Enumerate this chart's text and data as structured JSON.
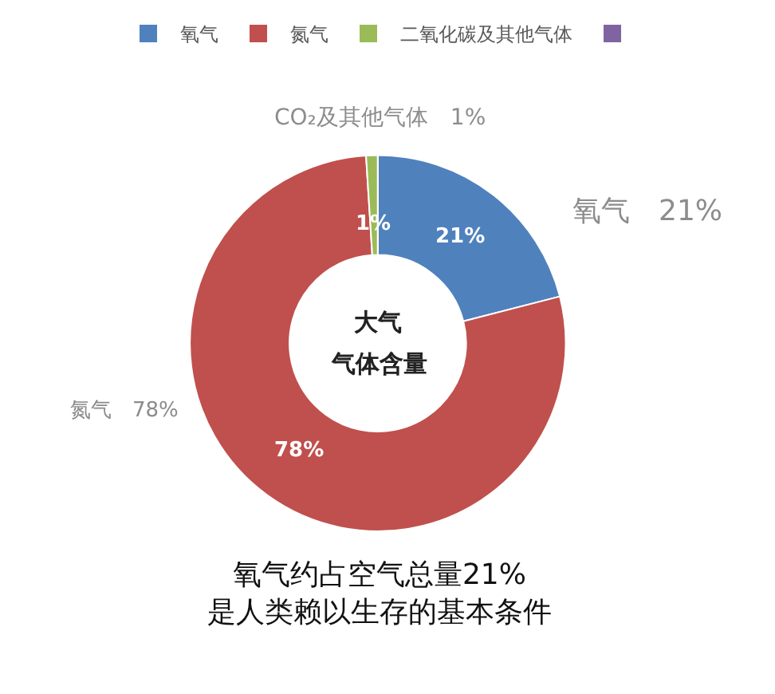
{
  "chart_data": {
    "type": "donut",
    "categories": [
      "氧气",
      "氮气",
      "二氧化碳及其他气体",
      null
    ],
    "values": [
      21,
      78,
      1,
      0
    ],
    "colors": [
      "#4f81bd",
      "#c0504d",
      "#9bbb59",
      "#8064a2"
    ],
    "value_labels": [
      "21%",
      "78%",
      "1%",
      null
    ],
    "legend": "top",
    "annotations": [
      "CO₂及其他气体　1%",
      "氧气　21%",
      "氮气　78%",
      "大气",
      "气体含量",
      "氧气约占空气总量21%\n是人类赖以生存的基本条件"
    ]
  }
}
